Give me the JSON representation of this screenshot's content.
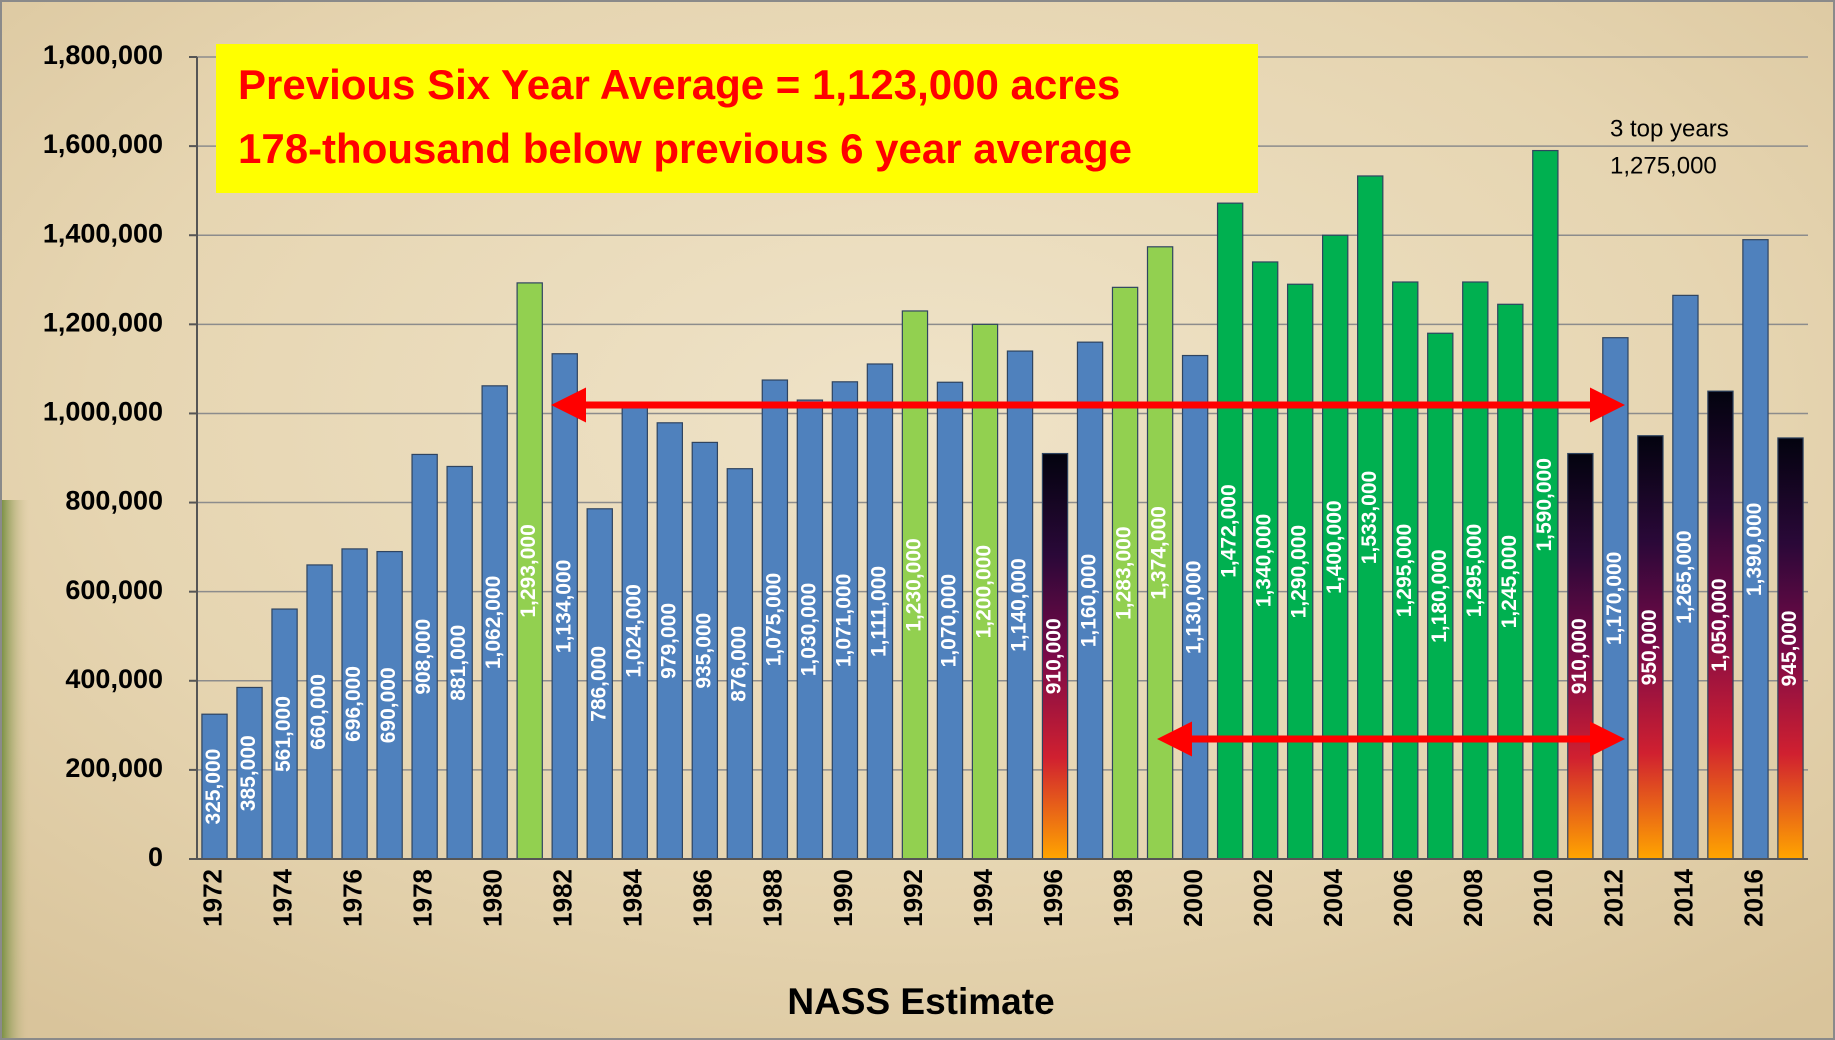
{
  "chart_data": {
    "type": "bar",
    "title_lines": [
      "Previous Six Year Average = 1,123,000 acres",
      "178-thousand below previous 6 year average"
    ],
    "annotation_lines": [
      "3 top years",
      "1,275,000"
    ],
    "x_label": "NASS Estimate",
    "categories": [
      "1972",
      null,
      "1974",
      null,
      "1976",
      null,
      "1978",
      null,
      "1980",
      null,
      "1982",
      null,
      "1984",
      null,
      "1986",
      null,
      "1988",
      null,
      "1990",
      null,
      "1992",
      null,
      "1994",
      null,
      "1996",
      null,
      "1998",
      null,
      "2000",
      null,
      "2002",
      null,
      "2004",
      null,
      "2006",
      null,
      "2008",
      null,
      "2010",
      null,
      "2012",
      null,
      "2014",
      null,
      "2016",
      null
    ],
    "values": [
      325000,
      385000,
      561000,
      660000,
      696000,
      690000,
      908000,
      881000,
      1062000,
      1293000,
      1134000,
      786000,
      1024000,
      979000,
      935000,
      876000,
      1075000,
      1030000,
      1071000,
      1111000,
      1230000,
      1070000,
      1200000,
      1140000,
      910000,
      1160000,
      1283000,
      1374000,
      1130000,
      1472000,
      1340000,
      1290000,
      1400000,
      1533000,
      1295000,
      1180000,
      1295000,
      1245000,
      1590000,
      910000,
      1170000,
      950000,
      1265000,
      1050000,
      1390000,
      945000
    ],
    "value_labels": [
      "325,000",
      "385,000",
      "561,000",
      "660,000",
      "696,000",
      "690,000",
      "908,000",
      "881,000",
      "1,062,000",
      "1,293,000",
      "1,134,000",
      "786,000",
      "1,024,000",
      "979,000",
      "935,000",
      "876,000",
      "1,075,000",
      "1,030,000",
      "1,071,000",
      "1,111,000",
      "1,230,000",
      "1,070,000",
      "1,200,000",
      "1,140,000",
      "910,000",
      "1,160,000",
      "1,283,000",
      "1,374,000",
      "1,130,000",
      "1,472,000",
      "1,340,000",
      "1,290,000",
      "1,400,000",
      "1,533,000",
      "1,295,000",
      "1,180,000",
      "1,295,000",
      "1,245,000",
      "1,590,000",
      "910,000",
      "1,170,000",
      "950,000",
      "1,265,000",
      "1,050,000",
      "1,390,000",
      "945,000"
    ],
    "colors": [
      "#4f81bd",
      "#4f81bd",
      "#4f81bd",
      "#4f81bd",
      "#4f81bd",
      "#4f81bd",
      "#4f81bd",
      "#4f81bd",
      "#4f81bd",
      "#92d050",
      "#4f81bd",
      "#4f81bd",
      "#4f81bd",
      "#4f81bd",
      "#4f81bd",
      "#4f81bd",
      "#4f81bd",
      "#4f81bd",
      "#4f81bd",
      "#4f81bd",
      "#92d050",
      "#4f81bd",
      "#92d050",
      "#4f81bd",
      [
        "#03030f",
        "#2a0838",
        "#7a0a48",
        "#d02030",
        "#ffa500"
      ],
      "#4f81bd",
      "#92d050",
      "#92d050",
      "#4f81bd",
      "#00b050",
      "#00b050",
      "#00b050",
      "#00b050",
      "#00b050",
      "#00b050",
      "#00b050",
      "#00b050",
      "#00b050",
      "#00b050",
      [
        "#03030f",
        "#2a0838",
        "#7a0a48",
        "#d02030",
        "#ffa500"
      ],
      "#4f81bd",
      [
        "#03030f",
        "#2a0838",
        "#7a0a48",
        "#d02030",
        "#ffa500"
      ],
      "#4f81bd",
      [
        "#03030f",
        "#2a0838",
        "#7a0a48",
        "#d02030",
        "#ffa500"
      ],
      "#4f81bd",
      [
        "#03030f",
        "#2a0838",
        "#7a0a48",
        "#d02030",
        "#ffa500"
      ]
    ],
    "ylim": [
      0,
      1800000
    ],
    "yticks": [
      0,
      {
        "value": 200000,
        "label": "200,000"
      },
      {
        "value": 400000,
        "label": "400,000"
      },
      {
        "value": 600000,
        "label": "600,000"
      },
      {
        "value": 800000,
        "label": "800,000"
      },
      {
        "value": 1000000,
        "label": "1,000,000"
      },
      {
        "value": 1200000,
        "label": "1,200,000"
      },
      {
        "value": 1400000,
        "label": "1,400,000"
      },
      {
        "value": 1600000,
        "label": "1,600,000"
      },
      {
        "value": 1800000,
        "label": "1,800,000"
      }
    ],
    "grid": true
  }
}
